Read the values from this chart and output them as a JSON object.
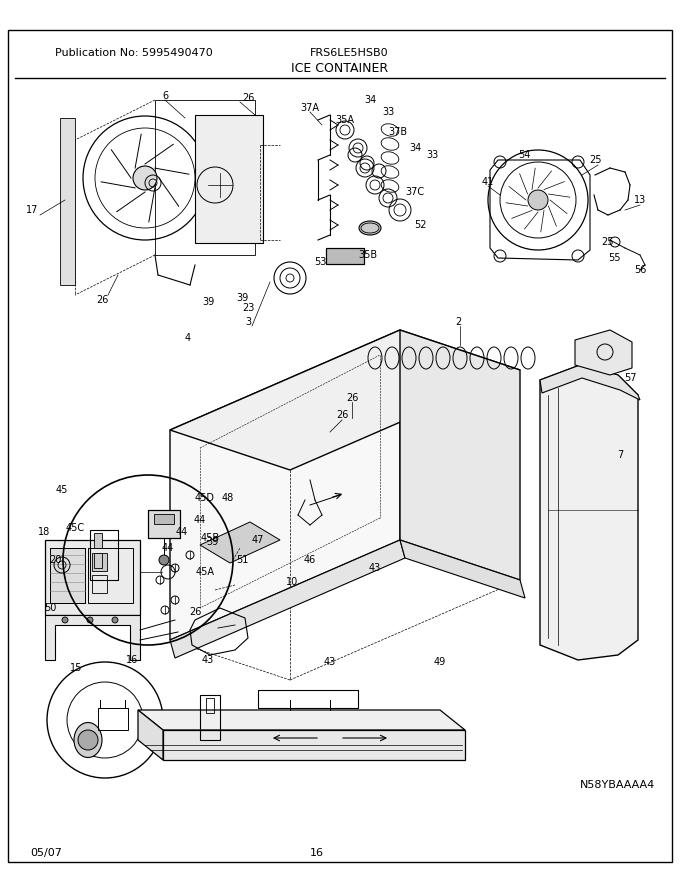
{
  "publication": "Publication No: 5995490470",
  "model": "FRS6LE5HSB0",
  "title": "ICE CONTAINER",
  "diagram_id": "N58YBAAAA4",
  "date": "05/07",
  "page": "16",
  "bg_color": "#ffffff",
  "line_color": "#000000",
  "text_color": "#000000",
  "fig_width": 6.8,
  "fig_height": 8.8,
  "dpi": 100
}
